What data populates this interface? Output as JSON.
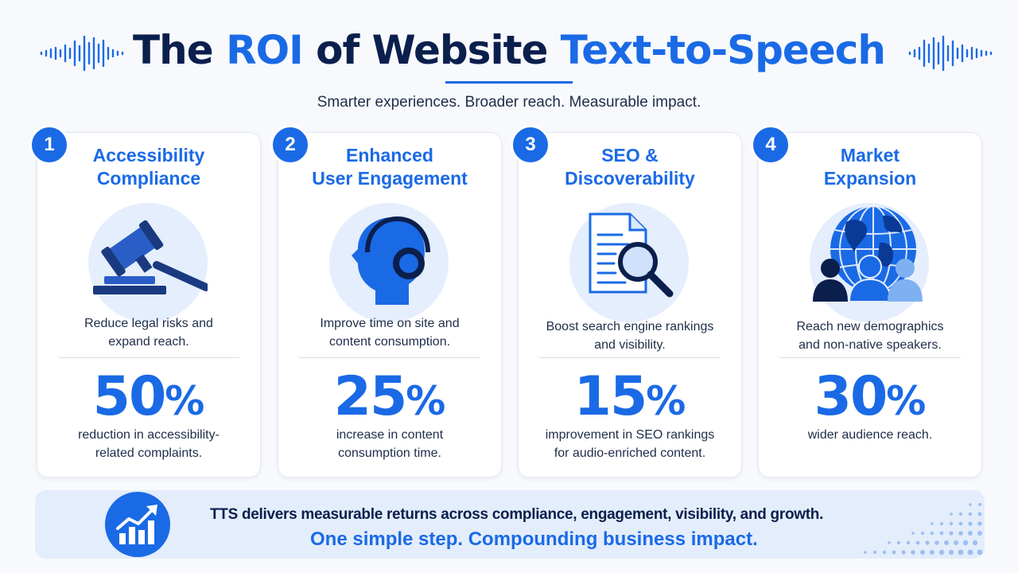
{
  "header": {
    "title_prefix": "The ",
    "title_accent1": "ROI",
    "title_middle": " of Website ",
    "title_accent2": "Text-to-Speech",
    "subtitle": "Smarter experiences. Broader reach. Measurable impact."
  },
  "cards": [
    {
      "number": "1",
      "title_line1": "Accessibility",
      "title_line2": "Compliance",
      "icon": "gavel-icon",
      "desc_line1": "Reduce legal risks and",
      "desc_line2": "expand reach.",
      "stat_value": "50",
      "stat_unit": "%",
      "stat_desc_line1": "reduction in accessibility-",
      "stat_desc_line2": "related complaints."
    },
    {
      "number": "2",
      "title_line1": "Enhanced",
      "title_line2": "User Engagement",
      "icon": "headphones-head-icon",
      "desc_line1": "Improve time on site and",
      "desc_line2": "content consumption.",
      "stat_value": "25",
      "stat_unit": "%",
      "stat_desc_line1": "increase in content",
      "stat_desc_line2": "consumption time."
    },
    {
      "number": "3",
      "title_line1": "SEO &",
      "title_line2": "Discoverability",
      "icon": "document-search-icon",
      "desc_line1": "Boost search engine rankings",
      "desc_line2": "and visibility.",
      "stat_value": "15",
      "stat_unit": "%",
      "stat_desc_line1": "improvement in SEO rankings",
      "stat_desc_line2": "for audio-enriched content."
    },
    {
      "number": "4",
      "title_line1": "Market",
      "title_line2": "Expansion",
      "icon": "globe-people-icon",
      "desc_line1": "Reach new demographics",
      "desc_line2": "and non-native speakers.",
      "stat_value": "30",
      "stat_unit": "%",
      "stat_desc_line1": "wider audience reach.",
      "stat_desc_line2": ""
    }
  ],
  "footer": {
    "icon": "growth-chart-icon",
    "line1": "TTS delivers measurable returns across compliance, engagement, visibility, and growth.",
    "line2": "One simple step. Compounding business impact."
  },
  "colors": {
    "accent": "#1a6ae6",
    "navy": "#0b1f4d",
    "light_blue": "#e4eefc"
  }
}
